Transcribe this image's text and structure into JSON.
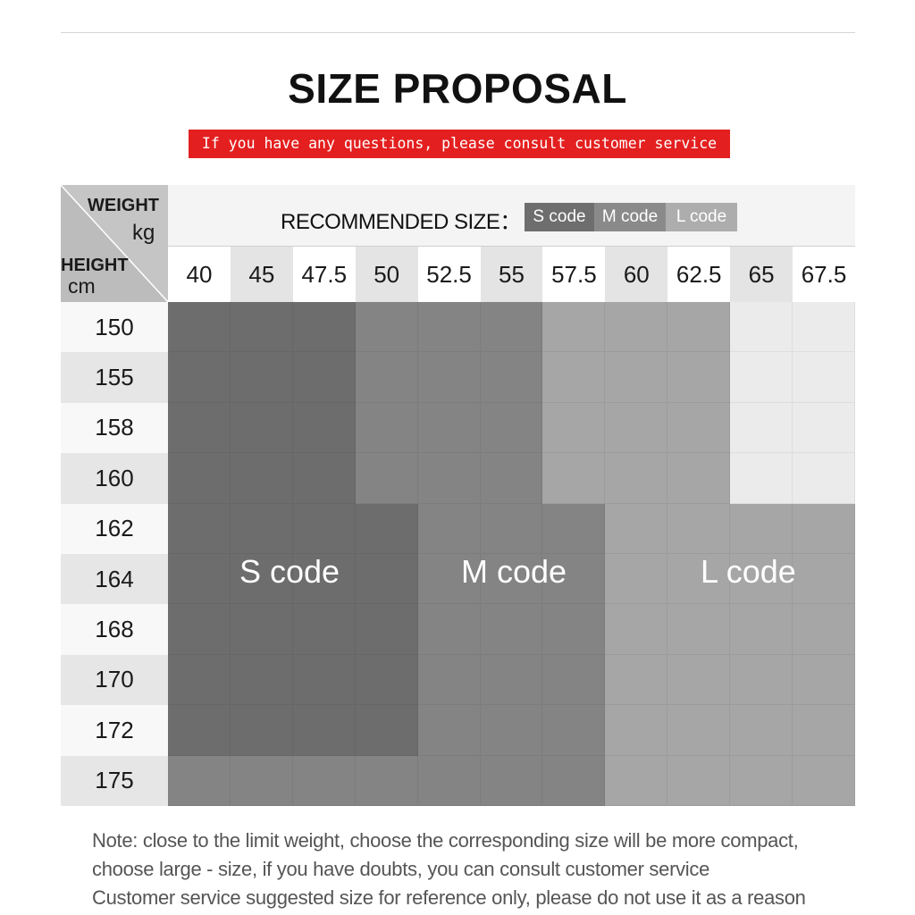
{
  "title": "SIZE PROPOSAL",
  "banner": "If you have any questions, please consult customer service",
  "corner": {
    "weight_label": "WEIGHT",
    "weight_unit": "kg",
    "height_label": "HEIGHT",
    "height_unit": "cm"
  },
  "recommended": {
    "label": "RECOMMENDED SIZE：",
    "legend": {
      "s": "S code",
      "m": "M code",
      "l": "L code"
    }
  },
  "weights": [
    "40",
    "45",
    "47.5",
    "50",
    "52.5",
    "55",
    "57.5",
    "60",
    "62.5",
    "65",
    "67.5"
  ],
  "heights": [
    "150",
    "155",
    "158",
    "160",
    "162",
    "164",
    "168",
    "170",
    "172",
    "175"
  ],
  "size_grid": [
    [
      "S",
      "S",
      "S",
      "M",
      "M",
      "M",
      "L",
      "L",
      "L",
      "XL",
      "XL"
    ],
    [
      "S",
      "S",
      "S",
      "M",
      "M",
      "M",
      "L",
      "L",
      "L",
      "XL",
      "XL"
    ],
    [
      "S",
      "S",
      "S",
      "M",
      "M",
      "M",
      "L",
      "L",
      "L",
      "XL",
      "XL"
    ],
    [
      "S",
      "S",
      "S",
      "M",
      "M",
      "M",
      "L",
      "L",
      "L",
      "XL",
      "XL"
    ],
    [
      "S",
      "S",
      "S",
      "S",
      "M",
      "M",
      "M",
      "L",
      "L",
      "L",
      "L"
    ],
    [
      "S",
      "S",
      "S",
      "S",
      "M",
      "M",
      "M",
      "L",
      "L",
      "L",
      "L"
    ],
    [
      "S",
      "S",
      "S",
      "S",
      "M",
      "M",
      "M",
      "L",
      "L",
      "L",
      "L"
    ],
    [
      "S",
      "S",
      "S",
      "S",
      "M",
      "M",
      "M",
      "L",
      "L",
      "L",
      "L"
    ],
    [
      "S",
      "S",
      "S",
      "S",
      "M",
      "M",
      "M",
      "L",
      "L",
      "L",
      "L"
    ],
    [
      "M",
      "M",
      "M",
      "M",
      "M",
      "M",
      "M",
      "L",
      "L",
      "L",
      "L"
    ]
  ],
  "colors": {
    "S": "#6d6d6d",
    "M": "#848484",
    "L": "#a6a6a6",
    "XL": "#ebebeb",
    "banner": "#e41f1f"
  },
  "zone_labels": {
    "s": "S code",
    "m": "M code",
    "l": "L code"
  },
  "notes": [
    "Note: close to the limit weight, choose the corresponding size will be more compact,",
    "choose large - size, if you have doubts, you can consult customer service",
    "Customer service suggested size for reference only, please do not use it as a reason"
  ]
}
